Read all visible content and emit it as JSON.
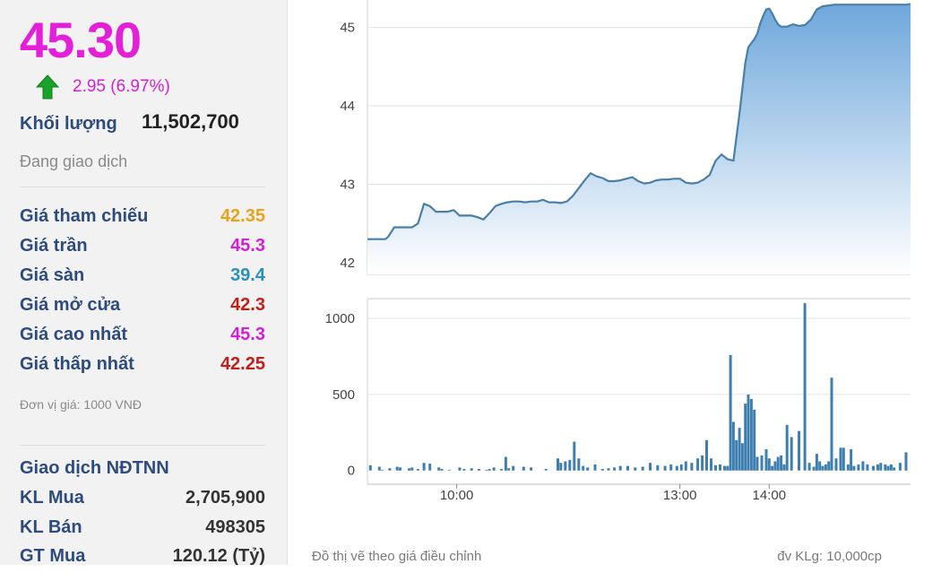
{
  "summary": {
    "price": "45.30",
    "change": "2.95 (6.97%)",
    "volume_label": "Khối lượng",
    "volume_value": "11,502,700",
    "status": "Đang giao dịch"
  },
  "price_stats": [
    {
      "label": "Giá tham chiếu",
      "value": "42.35",
      "color": "#e8a21c"
    },
    {
      "label": "Giá trần",
      "value": "45.3",
      "color": "#d21fd8"
    },
    {
      "label": "Giá sàn",
      "value": "39.4",
      "color": "#2a8fbd"
    },
    {
      "label": "Giá mở cửa",
      "value": "42.3",
      "color": "#c0201a"
    },
    {
      "label": "Giá cao nhất",
      "value": "45.3",
      "color": "#d21fd8"
    },
    {
      "label": "Giá thấp nhất",
      "value": "42.25",
      "color": "#c0201a"
    }
  ],
  "unit_note": "Đơn vị giá: 1000 VNĐ",
  "foreign": {
    "title": "Giao dịch NĐTNN",
    "rows": [
      {
        "label": "KL Mua",
        "value": "2,705,900"
      },
      {
        "label": "KL Bán",
        "value": "498305"
      },
      {
        "label": "GT Mua",
        "value": "120.12 (Tỷ)"
      }
    ]
  },
  "chart_notes": {
    "left": "Đồ thị vẽ theo giá điều chỉnh",
    "right": "đv KLg: 10,000cp"
  },
  "chart_data": [
    {
      "type": "area",
      "x_unit": "minutes since 09:00",
      "y_ticks": [
        42,
        43,
        44,
        45
      ],
      "ylim": [
        41.85,
        45.35
      ],
      "xlim": [
        0,
        365
      ],
      "x": [
        0,
        12,
        14,
        18,
        22,
        26,
        30,
        34,
        38,
        42,
        46,
        50,
        54,
        58,
        62,
        66,
        70,
        74,
        78,
        82,
        86,
        90,
        94,
        98,
        102,
        106,
        110,
        114,
        118,
        122,
        126,
        130,
        134,
        138,
        142,
        146,
        150,
        154,
        158,
        162,
        166,
        170,
        174,
        178,
        182,
        186,
        190,
        194,
        198,
        202,
        206,
        210,
        214,
        218,
        222,
        226,
        230,
        234,
        238,
        242,
        246,
        250,
        254,
        256,
        258,
        260,
        262,
        264,
        266,
        268,
        270,
        272,
        274,
        276,
        278,
        282,
        286,
        290,
        294,
        298,
        302,
        306,
        310,
        314,
        318,
        322,
        326,
        330,
        334,
        338,
        342,
        346,
        350,
        354,
        358,
        362,
        365
      ],
      "y": [
        42.3,
        42.3,
        42.33,
        42.45,
        42.45,
        42.45,
        42.45,
        42.5,
        42.75,
        42.72,
        42.65,
        42.65,
        42.65,
        42.67,
        42.6,
        42.6,
        42.6,
        42.58,
        42.55,
        42.63,
        42.72,
        42.75,
        42.77,
        42.78,
        42.78,
        42.77,
        42.78,
        42.78,
        42.8,
        42.77,
        42.77,
        42.76,
        42.78,
        42.85,
        42.95,
        43.05,
        43.14,
        43.1,
        43.08,
        43.04,
        43.04,
        43.05,
        43.07,
        43.09,
        43.04,
        43.01,
        43.02,
        43.05,
        43.06,
        43.06,
        43.07,
        43.07,
        43.02,
        43.01,
        43.02,
        43.06,
        43.12,
        43.3,
        43.38,
        43.32,
        43.3,
        43.9,
        44.55,
        44.75,
        44.8,
        44.85,
        44.92,
        45.05,
        45.15,
        45.23,
        45.24,
        45.18,
        45.1,
        45.04,
        45.01,
        45.01,
        45.04,
        45.02,
        45.03,
        45.1,
        45.23,
        45.27,
        45.28,
        45.29,
        45.29,
        45.29,
        45.29,
        45.29,
        45.29,
        45.29,
        45.29,
        45.29,
        45.29,
        45.29,
        45.29,
        45.29,
        45.3
      ],
      "colors": {
        "line": "#4a7fa8",
        "fill_top": "#6ea7db",
        "fill_bottom": "#ffffff"
      }
    },
    {
      "type": "bar",
      "x_unit": "minutes since 09:00",
      "y_ticks": [
        0,
        500,
        1000
      ],
      "ylim": [
        -90,
        1130
      ],
      "x_ticks": [
        {
          "label": "10:00",
          "x": 60
        },
        {
          "label": "13:00",
          "x": 210
        },
        {
          "label": "14:00",
          "x": 270
        }
      ],
      "x": [
        2,
        8,
        10,
        15,
        20,
        22,
        28,
        30,
        34,
        38,
        42,
        48,
        50,
        55,
        62,
        65,
        70,
        75,
        80,
        82,
        85,
        90,
        93,
        95,
        98,
        105,
        110,
        120,
        128,
        130,
        133,
        136,
        139,
        142,
        145,
        148,
        153,
        158,
        162,
        166,
        170,
        175,
        180,
        185,
        190,
        195,
        200,
        204,
        208,
        211,
        214,
        218,
        222,
        225,
        228,
        231,
        234,
        237,
        240,
        242,
        244,
        246,
        248,
        250,
        252,
        254,
        256,
        258,
        260,
        262,
        265,
        268,
        270,
        272,
        274,
        276,
        278,
        280,
        282,
        285,
        290,
        294,
        297,
        300,
        302,
        304,
        306,
        308,
        310,
        312,
        315,
        318,
        320,
        323,
        325,
        327,
        330,
        333,
        336,
        340,
        343,
        345,
        348,
        350,
        352,
        354,
        358,
        362
      ],
      "values": [
        35,
        25,
        5,
        15,
        25,
        20,
        15,
        20,
        10,
        50,
        45,
        20,
        10,
        5,
        20,
        10,
        15,
        10,
        5,
        10,
        20,
        10,
        90,
        15,
        30,
        25,
        20,
        10,
        80,
        50,
        60,
        70,
        190,
        80,
        30,
        20,
        40,
        10,
        15,
        20,
        30,
        30,
        20,
        25,
        50,
        35,
        30,
        40,
        30,
        40,
        60,
        50,
        80,
        100,
        200,
        80,
        35,
        40,
        30,
        30,
        760,
        320,
        200,
        280,
        180,
        440,
        500,
        470,
        400,
        90,
        100,
        140,
        80,
        30,
        60,
        90,
        100,
        40,
        300,
        220,
        260,
        1100,
        50,
        25,
        110,
        60,
        30,
        40,
        60,
        610,
        80,
        150,
        150,
        40,
        140,
        30,
        40,
        60,
        40,
        30,
        40,
        50,
        40,
        30,
        40,
        20,
        50,
        120
      ],
      "colors": {
        "bar": "#3f7fb0"
      }
    }
  ]
}
